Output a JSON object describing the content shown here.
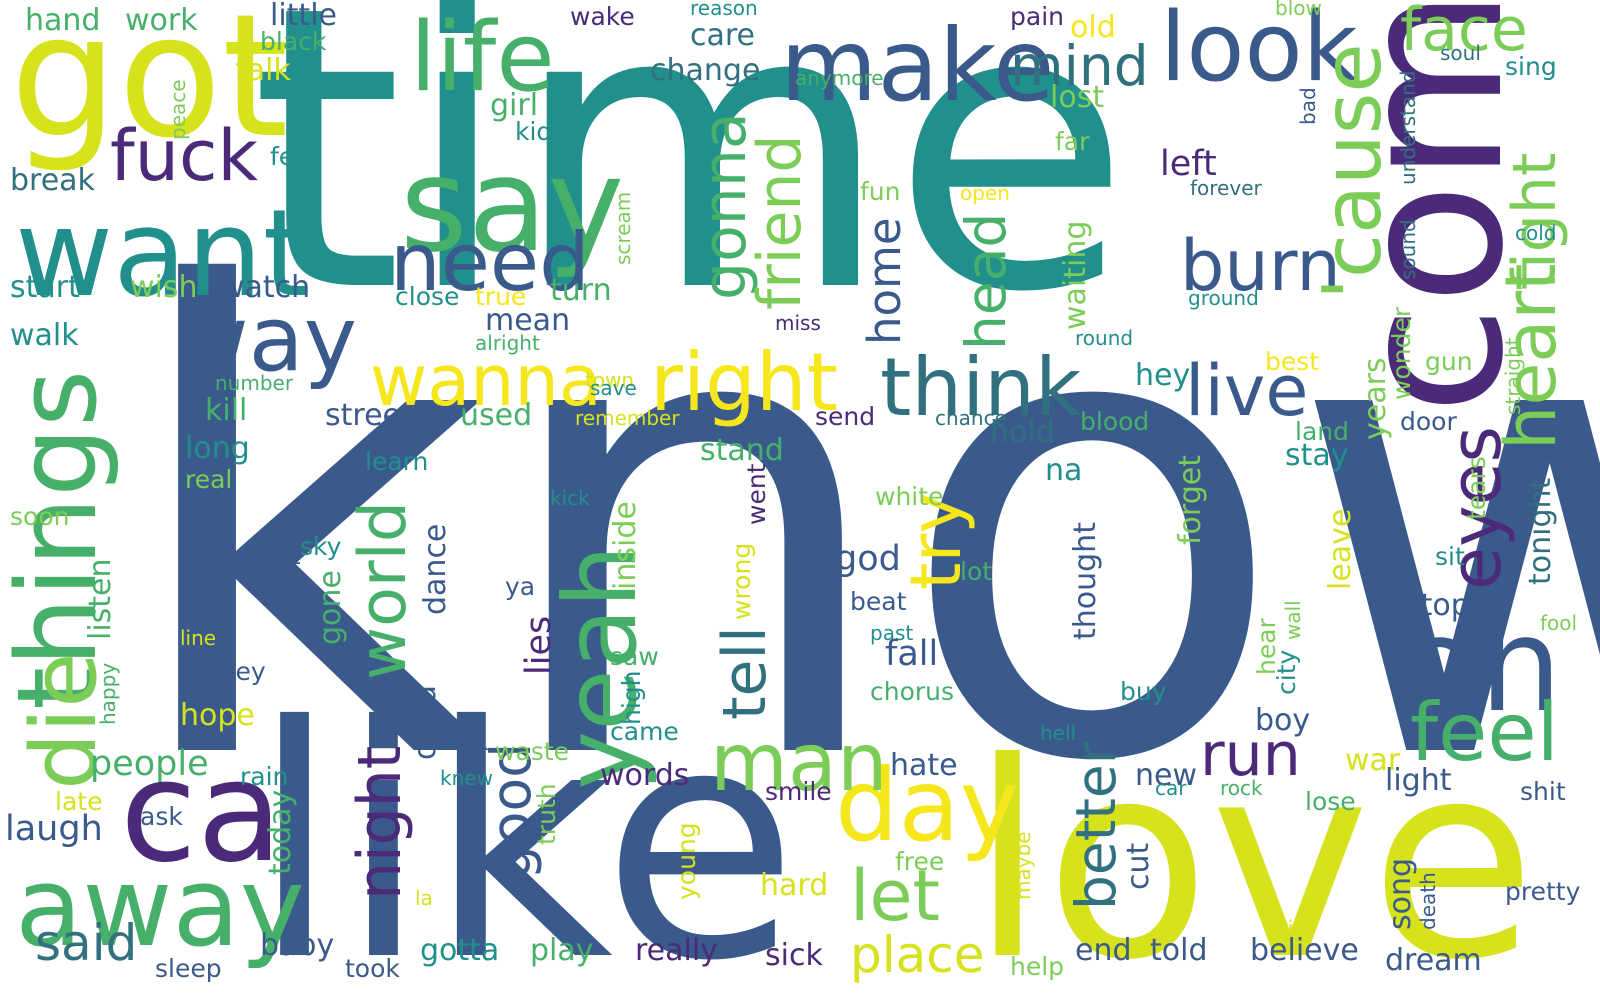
{
  "palette": {
    "c1": "#3b5a8c",
    "c2": "#218f8c",
    "c3": "#46b06a",
    "c4": "#7ccd58",
    "c5": "#d5e21c",
    "c6": "#4b2a79",
    "c7": "#31707f",
    "c8": "#f6e61c"
  },
  "words": [
    {
      "text": "know",
      "color": "c1"
    },
    {
      "text": "time",
      "color": "c2"
    },
    {
      "text": "like",
      "color": "c1"
    },
    {
      "text": "love",
      "color": "c5"
    },
    {
      "text": "come",
      "color": "c6"
    },
    {
      "text": "got",
      "color": "c5"
    },
    {
      "text": "want",
      "color": "c2"
    },
    {
      "text": "say",
      "color": "c3"
    },
    {
      "text": "make",
      "color": "c1"
    },
    {
      "text": "look",
      "color": "c1"
    },
    {
      "text": "life",
      "color": "c3"
    },
    {
      "text": "oh",
      "color": "c1"
    },
    {
      "text": "away",
      "color": "c3"
    },
    {
      "text": "ca",
      "color": "c6"
    },
    {
      "text": "yeah",
      "color": "c3"
    },
    {
      "text": "day",
      "color": "c8"
    },
    {
      "text": "things",
      "color": "c3"
    },
    {
      "text": "die",
      "color": "c4"
    },
    {
      "text": "way",
      "color": "c1"
    },
    {
      "text": "fuck",
      "color": "c6"
    },
    {
      "text": "need",
      "color": "c1"
    },
    {
      "text": "right",
      "color": "c8"
    },
    {
      "text": "think",
      "color": "c7"
    },
    {
      "text": "wanna",
      "color": "c8"
    },
    {
      "text": "man",
      "color": "c4"
    },
    {
      "text": "feel",
      "color": "c3"
    },
    {
      "text": "burn",
      "color": "c1"
    },
    {
      "text": "live",
      "color": "c1"
    },
    {
      "text": "'cause",
      "color": "c4"
    },
    {
      "text": "eyes",
      "color": "c6"
    },
    {
      "text": "heart",
      "color": "c4"
    },
    {
      "text": "fight",
      "color": "c4"
    },
    {
      "text": "face",
      "color": "c4"
    },
    {
      "text": "mind",
      "color": "c7"
    },
    {
      "text": "gonna",
      "color": "c3"
    },
    {
      "text": "friend",
      "color": "c4"
    },
    {
      "text": "head",
      "color": "c3"
    },
    {
      "text": "home",
      "color": "c1"
    },
    {
      "text": "try",
      "color": "c8"
    },
    {
      "text": "tell",
      "color": "c7"
    },
    {
      "text": "world",
      "color": "c3"
    },
    {
      "text": "night",
      "color": "c6"
    },
    {
      "text": "let",
      "color": "c4"
    },
    {
      "text": "good",
      "color": "c1"
    },
    {
      "text": "run",
      "color": "c6"
    },
    {
      "text": "better",
      "color": "c7"
    },
    {
      "text": "place",
      "color": "c5"
    },
    {
      "text": "said",
      "color": "c7"
    },
    {
      "text": "left",
      "color": "c6"
    },
    {
      "text": "hand",
      "color": "c3"
    },
    {
      "text": "work",
      "color": "c3"
    },
    {
      "text": "little",
      "color": "c1"
    },
    {
      "text": "black",
      "color": "c3"
    },
    {
      "text": "talk",
      "color": "c5"
    },
    {
      "text": "change",
      "color": "c7"
    },
    {
      "text": "care",
      "color": "c7"
    },
    {
      "text": "wake",
      "color": "c6"
    },
    {
      "text": "reason",
      "color": "c2"
    },
    {
      "text": "pain",
      "color": "c6"
    },
    {
      "text": "old",
      "color": "c8"
    },
    {
      "text": "lost",
      "color": "c4"
    },
    {
      "text": "far",
      "color": "c4"
    },
    {
      "text": "girl",
      "color": "c3"
    },
    {
      "text": "kids",
      "color": "c2"
    },
    {
      "text": "fear",
      "color": "c2"
    },
    {
      "text": "break",
      "color": "c7"
    },
    {
      "text": "start",
      "color": "c2"
    },
    {
      "text": "wish",
      "color": "c4"
    },
    {
      "text": "watch",
      "color": "c1"
    },
    {
      "text": "turn",
      "color": "c3"
    },
    {
      "text": "close",
      "color": "c2"
    },
    {
      "text": "true",
      "color": "c8"
    },
    {
      "text": "mean",
      "color": "c1"
    },
    {
      "text": "walk",
      "color": "c2"
    },
    {
      "text": "alright",
      "color": "c3"
    },
    {
      "text": "miss",
      "color": "c6"
    },
    {
      "text": "round",
      "color": "c2"
    },
    {
      "text": "waiting",
      "color": "c4"
    },
    {
      "text": "fun",
      "color": "c4"
    },
    {
      "text": "open",
      "color": "c8"
    },
    {
      "text": "forever",
      "color": "c7"
    },
    {
      "text": "ground",
      "color": "c2"
    },
    {
      "text": "sound",
      "color": "c7"
    },
    {
      "text": "understand",
      "color": "c7"
    },
    {
      "text": "soul",
      "color": "c7"
    },
    {
      "text": "sing",
      "color": "c2"
    },
    {
      "text": "blow",
      "color": "c4"
    },
    {
      "text": "bad",
      "color": "c1"
    },
    {
      "text": "cold",
      "color": "c2"
    },
    {
      "text": "peace",
      "color": "c4"
    },
    {
      "text": "scream",
      "color": "c4"
    },
    {
      "text": "anymore",
      "color": "c3"
    },
    {
      "text": "hey",
      "color": "c2"
    },
    {
      "text": "kill",
      "color": "c3"
    },
    {
      "text": "street",
      "color": "c1"
    },
    {
      "text": "used",
      "color": "c3"
    },
    {
      "text": "remember",
      "color": "c5"
    },
    {
      "text": "town",
      "color": "c5"
    },
    {
      "text": "save",
      "color": "c2"
    },
    {
      "text": "number",
      "color": "c3"
    },
    {
      "text": "long",
      "color": "c2"
    },
    {
      "text": "stand",
      "color": "c3"
    },
    {
      "text": "hold",
      "color": "c7"
    },
    {
      "text": "na",
      "color": "c2"
    },
    {
      "text": "send",
      "color": "c6"
    },
    {
      "text": "chance",
      "color": "c7"
    },
    {
      "text": "blood",
      "color": "c3"
    },
    {
      "text": "years",
      "color": "c4"
    },
    {
      "text": "wonder",
      "color": "c4"
    },
    {
      "text": "best",
      "color": "c8"
    },
    {
      "text": "gun",
      "color": "c4"
    },
    {
      "text": "straight",
      "color": "c4"
    },
    {
      "text": "door",
      "color": "c1"
    },
    {
      "text": "tonight",
      "color": "c7"
    },
    {
      "text": "land",
      "color": "c3"
    },
    {
      "text": "stay",
      "color": "c2"
    },
    {
      "text": "sure",
      "color": "c1"
    },
    {
      "text": "learn",
      "color": "c2"
    },
    {
      "text": "real",
      "color": "c4"
    },
    {
      "text": "soon",
      "color": "c4"
    },
    {
      "text": "kick",
      "color": "c2"
    },
    {
      "text": "white",
      "color": "c4"
    },
    {
      "text": "went",
      "color": "c6"
    },
    {
      "text": "wrong",
      "color": "c5"
    },
    {
      "text": "inside",
      "color": "c4"
    },
    {
      "text": "dance",
      "color": "c1"
    },
    {
      "text": "sky",
      "color": "c2"
    },
    {
      "text": "game",
      "color": "c1"
    },
    {
      "text": "listen",
      "color": "c3"
    },
    {
      "text": "gone",
      "color": "c3"
    },
    {
      "text": "forget",
      "color": "c4"
    },
    {
      "text": "thought",
      "color": "c1"
    },
    {
      "text": "leave",
      "color": "c5"
    },
    {
      "text": "tears",
      "color": "c4"
    },
    {
      "text": "sit",
      "color": "c2"
    },
    {
      "text": "stop",
      "color": "c1"
    },
    {
      "text": "god",
      "color": "c1"
    },
    {
      "text": "lot",
      "color": "c3"
    },
    {
      "text": "ya",
      "color": "c1"
    },
    {
      "text": "beat",
      "color": "c1"
    },
    {
      "text": "past",
      "color": "c2"
    },
    {
      "text": "fool",
      "color": "c4"
    },
    {
      "text": "line",
      "color": "c5"
    },
    {
      "text": "fall",
      "color": "c1"
    },
    {
      "text": "lies",
      "color": "c6"
    },
    {
      "text": "saw",
      "color": "c3"
    },
    {
      "text": "city",
      "color": "c2"
    },
    {
      "text": "hear",
      "color": "c4"
    },
    {
      "text": "wall",
      "color": "c4"
    },
    {
      "text": "money",
      "color": "c1"
    },
    {
      "text": "chorus",
      "color": "c3"
    },
    {
      "text": "high",
      "color": "c2"
    },
    {
      "text": "buy",
      "color": "c2"
    },
    {
      "text": "boy",
      "color": "c1"
    },
    {
      "text": "happy",
      "color": "c3"
    },
    {
      "text": "hope",
      "color": "c5"
    },
    {
      "text": "dead",
      "color": "c1"
    },
    {
      "text": "came",
      "color": "c2"
    },
    {
      "text": "hell",
      "color": "c2"
    },
    {
      "text": "people",
      "color": "c3"
    },
    {
      "text": "waste",
      "color": "c4"
    },
    {
      "text": "hate",
      "color": "c1"
    },
    {
      "text": "new",
      "color": "c1"
    },
    {
      "text": "war",
      "color": "c5"
    },
    {
      "text": "light",
      "color": "c1"
    },
    {
      "text": "rain",
      "color": "c2"
    },
    {
      "text": "words",
      "color": "c6"
    },
    {
      "text": "knew",
      "color": "c2"
    },
    {
      "text": "smile",
      "color": "c6"
    },
    {
      "text": "car",
      "color": "c2"
    },
    {
      "text": "rock",
      "color": "c3"
    },
    {
      "text": "shit",
      "color": "c1"
    },
    {
      "text": "lose",
      "color": "c3"
    },
    {
      "text": "late",
      "color": "c5"
    },
    {
      "text": "ask",
      "color": "c1"
    },
    {
      "text": "truth",
      "color": "c4"
    },
    {
      "text": "laugh",
      "color": "c1"
    },
    {
      "text": "today",
      "color": "c3"
    },
    {
      "text": "young",
      "color": "c5"
    },
    {
      "text": "free",
      "color": "c4"
    },
    {
      "text": "hard",
      "color": "c5"
    },
    {
      "text": "cut",
      "color": "c1"
    },
    {
      "text": "song",
      "color": "c1"
    },
    {
      "text": "maybe",
      "color": "c5"
    },
    {
      "text": "death",
      "color": "c1"
    },
    {
      "text": "pretty",
      "color": "c1"
    },
    {
      "text": "la",
      "color": "c5"
    },
    {
      "text": "big",
      "color": "c5"
    },
    {
      "text": "baby",
      "color": "c1"
    },
    {
      "text": "sleep",
      "color": "c1"
    },
    {
      "text": "took",
      "color": "c1"
    },
    {
      "text": "gotta",
      "color": "c2"
    },
    {
      "text": "play",
      "color": "c3"
    },
    {
      "text": "really",
      "color": "c6"
    },
    {
      "text": "sick",
      "color": "c6"
    },
    {
      "text": "help",
      "color": "c4"
    },
    {
      "text": "end",
      "color": "c1"
    },
    {
      "text": "told",
      "color": "c1"
    },
    {
      "text": "believe",
      "color": "c1"
    },
    {
      "text": "dream",
      "color": "c1"
    }
  ]
}
